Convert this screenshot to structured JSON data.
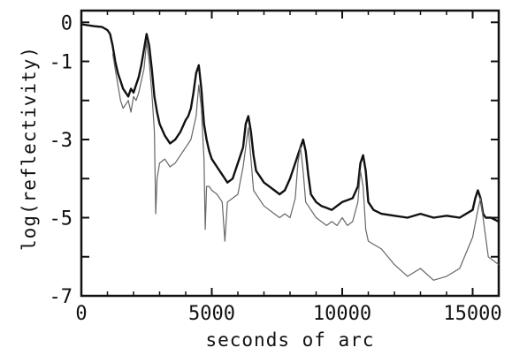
{
  "chart_data": {
    "type": "line",
    "title": "",
    "xlabel": "seconds of arc",
    "ylabel": "log(reflectivity)",
    "xlim": [
      0,
      16000
    ],
    "ylim": [
      -7,
      0.3
    ],
    "x_ticks": [
      0,
      5000,
      10000,
      15000
    ],
    "x_tick_labels": [
      "0",
      "5000",
      "10000",
      "15000"
    ],
    "x_minor_ticks": [
      1000,
      2000,
      3000,
      4000,
      6000,
      7000,
      8000,
      9000,
      11000,
      12000,
      13000,
      14000
    ],
    "y_ticks": [
      0,
      -1,
      -2,
      -3,
      -4,
      -5,
      -6,
      -7
    ],
    "y_tick_labels": [
      "0",
      "-1",
      "",
      "-3",
      "",
      "-5",
      "",
      "-7"
    ],
    "grid": false,
    "legend": "none",
    "colors": {
      "series_a": "#111111",
      "series_b": "#666666",
      "axes": "#111111"
    },
    "series": [
      {
        "x": [
          0,
          500,
          800,
          1000,
          1100,
          1200,
          1300,
          1400,
          1500,
          1600,
          1700,
          1800,
          1900,
          2000,
          2100,
          2200,
          2300,
          2400,
          2500,
          2600,
          2700,
          2800,
          2900,
          3000,
          3200,
          3400,
          3600,
          3800,
          4000,
          4100,
          4200,
          4300,
          4400,
          4500,
          4600,
          4700,
          4800,
          4900,
          5000,
          5200,
          5400,
          5600,
          5800,
          6000,
          6200,
          6300,
          6400,
          6500,
          6600,
          6700,
          6800,
          7000,
          7200,
          7400,
          7600,
          7800,
          8000,
          8200,
          8400,
          8500,
          8600,
          8700,
          8800,
          9000,
          9200,
          9400,
          9600,
          9800,
          10000,
          10200,
          10400,
          10600,
          10700,
          10800,
          10900,
          11000,
          11200,
          11500,
          12000,
          12500,
          13000,
          13500,
          14000,
          14500,
          15000,
          15100,
          15200,
          15300,
          15400,
          15500,
          15700,
          16000
        ],
        "y": [
          -0.05,
          -0.1,
          -0.12,
          -0.2,
          -0.3,
          -0.6,
          -1.0,
          -1.3,
          -1.5,
          -1.7,
          -1.8,
          -1.9,
          -1.7,
          -1.8,
          -1.6,
          -1.4,
          -1.1,
          -0.7,
          -0.3,
          -0.6,
          -1.2,
          -1.9,
          -2.3,
          -2.6,
          -2.9,
          -3.1,
          -3.0,
          -2.8,
          -2.5,
          -2.4,
          -2.2,
          -1.8,
          -1.3,
          -1.1,
          -1.7,
          -2.6,
          -3.0,
          -3.3,
          -3.5,
          -3.7,
          -3.9,
          -4.1,
          -4.0,
          -3.6,
          -3.2,
          -2.6,
          -2.4,
          -2.8,
          -3.4,
          -3.8,
          -3.9,
          -4.1,
          -4.2,
          -4.3,
          -4.4,
          -4.3,
          -4.0,
          -3.6,
          -3.2,
          -3.0,
          -3.3,
          -3.9,
          -4.4,
          -4.6,
          -4.7,
          -4.75,
          -4.8,
          -4.7,
          -4.6,
          -4.55,
          -4.5,
          -4.2,
          -3.6,
          -3.4,
          -3.8,
          -4.6,
          -4.8,
          -4.9,
          -4.95,
          -5.0,
          -4.9,
          -5.0,
          -4.95,
          -5.0,
          -4.8,
          -4.5,
          -4.3,
          -4.5,
          -4.9,
          -5.0,
          -5.0,
          -5.1
        ]
      },
      {
        "x": [
          1200,
          1300,
          1400,
          1500,
          1600,
          1700,
          1800,
          1900,
          2000,
          2100,
          2200,
          2300,
          2400,
          2500,
          2600,
          2700,
          2800,
          2850,
          2900,
          3000,
          3200,
          3400,
          3600,
          3800,
          4000,
          4200,
          4400,
          4500,
          4600,
          4700,
          4750,
          4800,
          4900,
          5000,
          5200,
          5400,
          5500,
          5600,
          5800,
          6000,
          6200,
          6300,
          6400,
          6500,
          6600,
          6800,
          7000,
          7200,
          7400,
          7600,
          7800,
          8000,
          8200,
          8300,
          8400,
          8500,
          8600,
          8800,
          9000,
          9200,
          9400,
          9600,
          9800,
          10000,
          10200,
          10400,
          10600,
          10700,
          10800,
          10900,
          11000,
          11500,
          12000,
          12500,
          13000,
          13500,
          14000,
          14500,
          15000,
          15200,
          15300,
          15400,
          15600,
          16000
        ],
        "y": [
          -0.8,
          -1.2,
          -1.6,
          -2.0,
          -2.2,
          -2.1,
          -2.0,
          -2.3,
          -1.9,
          -2.0,
          -1.8,
          -1.5,
          -1.2,
          -0.5,
          -1.0,
          -1.8,
          -2.8,
          -4.9,
          -4.0,
          -3.6,
          -3.5,
          -3.7,
          -3.6,
          -3.4,
          -3.2,
          -3.0,
          -2.4,
          -1.6,
          -2.2,
          -3.5,
          -5.3,
          -4.2,
          -4.2,
          -4.3,
          -4.4,
          -4.6,
          -5.6,
          -4.6,
          -4.5,
          -4.4,
          -3.7,
          -3.2,
          -2.7,
          -3.5,
          -4.3,
          -4.5,
          -4.7,
          -4.8,
          -4.9,
          -5.0,
          -4.9,
          -5.0,
          -4.5,
          -3.6,
          -3.2,
          -3.8,
          -4.6,
          -4.8,
          -5.0,
          -5.1,
          -5.2,
          -5.1,
          -5.2,
          -5.0,
          -5.2,
          -5.1,
          -4.6,
          -3.8,
          -4.2,
          -5.3,
          -5.6,
          -5.8,
          -6.2,
          -6.5,
          -6.3,
          -6.6,
          -6.5,
          -6.3,
          -5.5,
          -4.8,
          -4.5,
          -5.0,
          -6.0,
          -6.2
        ]
      }
    ]
  }
}
